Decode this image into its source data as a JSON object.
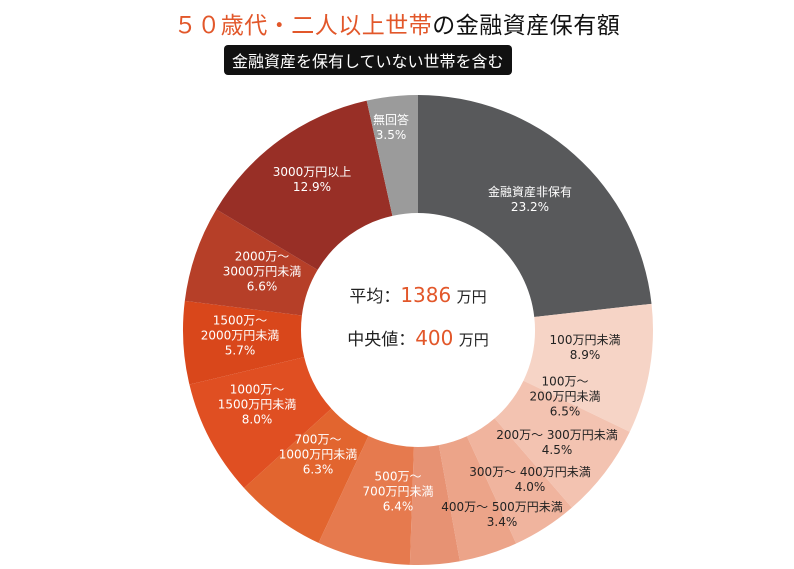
{
  "title": {
    "highlight": "５０歳代・二人以上世帯",
    "rest": "の金融資産保有額"
  },
  "subtitle": "金融資産を保有していない世帯を含む",
  "center": {
    "mean_label": "平均：",
    "mean_value": "1386",
    "mean_unit": "万円",
    "median_label": "中央値：",
    "median_value": "400",
    "median_unit": "万円"
  },
  "chart_data": {
    "type": "pie",
    "donut": true,
    "unit": "%",
    "categories": [
      "金融資産非保有",
      "100万円未満",
      "100万〜\n200万円未満",
      "200万〜 300万円未満",
      "300万〜 400万円未満",
      "400万〜 500万円未満",
      "500万〜\n700万円未満",
      "700万〜\n1000万円未満",
      "1000万〜\n1500万円未満",
      "1500万〜\n2000万円未満",
      "2000万〜\n3000万円未満",
      "3000万円以上",
      "無回答"
    ],
    "values": [
      23.2,
      8.9,
      6.5,
      4.5,
      4.0,
      3.4,
      6.4,
      6.3,
      8.0,
      5.7,
      6.6,
      12.9,
      3.5
    ],
    "value_labels": [
      "23.2%",
      "8.9%",
      "6.5%",
      "4.5%",
      "4.0%",
      "3.4%",
      "6.4%",
      "6.3%",
      "8.0%",
      "5.7%",
      "6.6%",
      "12.9%",
      "3.5%"
    ],
    "colors": [
      "#58595b",
      "#f6d4c6",
      "#f3c3b1",
      "#f0b49e",
      "#eca489",
      "#e79273",
      "#e67a4e",
      "#e2652f",
      "#e04f22",
      "#d9471b",
      "#b63f28",
      "#982f26",
      "#9b9b9b"
    ],
    "label_colors": [
      "#ffffff",
      "#222222",
      "#222222",
      "#222222",
      "#222222",
      "#222222",
      "#ffffff",
      "#ffffff",
      "#ffffff",
      "#ffffff",
      "#ffffff",
      "#ffffff",
      "#ffffff"
    ],
    "start": "top",
    "direction": "clockwise"
  }
}
